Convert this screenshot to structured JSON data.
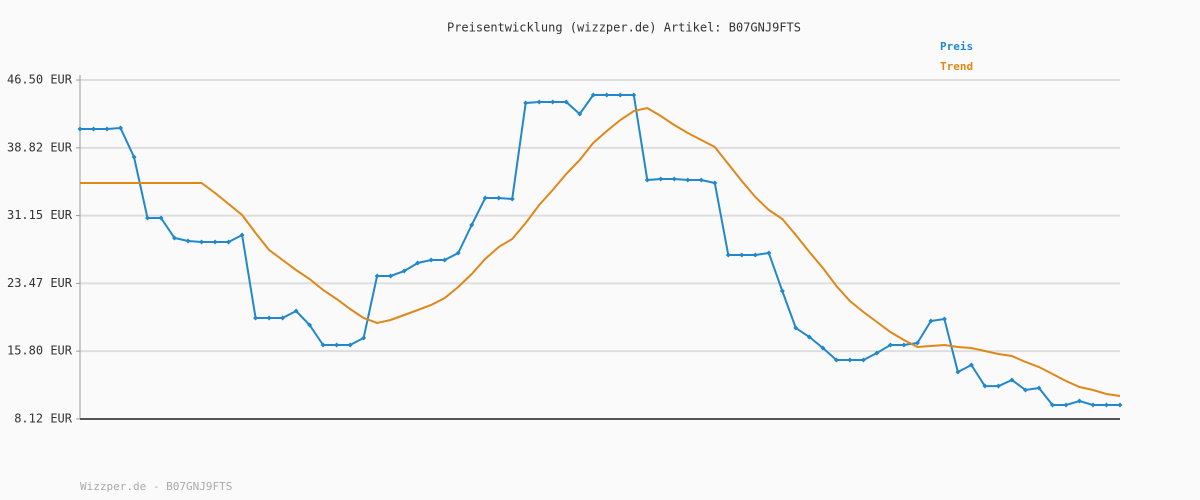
{
  "chart_data": {
    "type": "line",
    "title": "Preisentwicklung (wizzper.de) Artikel: B07GNJ9FTS",
    "footer": "Wizzper.de - B07GNJ9FTS",
    "categories": [
      null,
      null,
      null,
      null,
      null,
      null,
      null,
      null,
      null,
      null,
      null,
      null,
      null,
      null,
      null,
      null,
      null,
      null,
      null,
      null,
      null,
      null,
      null,
      null,
      null,
      null,
      null,
      null,
      null,
      null,
      null,
      null,
      null,
      null,
      null,
      null,
      null,
      null,
      null,
      null,
      null,
      null,
      null,
      null,
      null,
      null,
      null,
      null,
      null,
      null,
      null,
      null,
      null,
      null,
      null,
      null,
      null,
      null,
      null,
      null,
      null,
      null,
      null,
      null,
      null,
      null,
      null,
      null,
      null,
      null,
      null,
      null,
      null,
      null,
      null,
      null,
      null,
      null
    ],
    "series": [
      {
        "name": "Preis",
        "color": "#2288cc",
        "markers": true,
        "values": [
          40.95,
          40.95,
          40.95,
          41.07,
          37.78,
          30.88,
          30.88,
          28.61,
          28.27,
          28.16,
          28.16,
          28.16,
          28.95,
          19.55,
          19.55,
          19.55,
          20.35,
          18.76,
          16.5,
          16.5,
          16.5,
          17.29,
          24.31,
          24.31,
          24.87,
          25.78,
          26.12,
          26.12,
          26.91,
          30.08,
          33.14,
          33.14,
          33.03,
          43.9,
          44.01,
          44.01,
          44.01,
          42.65,
          44.8,
          44.8,
          44.8,
          44.8,
          35.18,
          35.29,
          35.29,
          35.18,
          35.18,
          34.84,
          26.69,
          26.69,
          26.69,
          26.91,
          22.61,
          18.42,
          17.4,
          16.16,
          14.8,
          14.8,
          14.8,
          15.59,
          16.5,
          16.5,
          16.72,
          19.21,
          19.44,
          13.44,
          14.23,
          11.85,
          11.85,
          12.53,
          11.4,
          11.63,
          9.7,
          9.7,
          10.16,
          9.7,
          9.7,
          9.7
        ]
      },
      {
        "name": "Trend",
        "color": "#e0871a",
        "markers": false,
        "values": [
          34.84,
          34.84,
          34.84,
          34.84,
          34.84,
          34.84,
          34.84,
          34.84,
          34.84,
          34.84,
          33.71,
          32.46,
          31.22,
          29.18,
          27.25,
          26.12,
          24.99,
          23.97,
          22.72,
          21.71,
          20.57,
          19.55,
          18.99,
          19.33,
          19.89,
          20.46,
          21.03,
          21.82,
          23.06,
          24.54,
          26.23,
          27.59,
          28.5,
          30.31,
          32.35,
          34.05,
          35.86,
          37.44,
          39.37,
          40.73,
          41.97,
          42.99,
          43.33,
          42.42,
          41.41,
          40.5,
          39.71,
          38.91,
          36.99,
          35.06,
          33.25,
          31.78,
          30.76,
          28.95,
          27.03,
          25.21,
          23.18,
          21.48,
          20.23,
          19.1,
          17.97,
          17.06,
          16.27,
          16.38,
          16.5,
          16.27,
          16.16,
          15.82,
          15.48,
          15.25,
          14.57,
          14.01,
          13.21,
          12.42,
          11.74,
          11.4,
          10.95,
          10.72
        ]
      }
    ],
    "ylim": [
      8.12,
      46.5
    ],
    "yticks": [
      {
        "value": 8.12,
        "label": "8.12 EUR"
      },
      {
        "value": 15.8,
        "label": "15.80 EUR"
      },
      {
        "value": 23.47,
        "label": "23.47 EUR"
      },
      {
        "value": 31.15,
        "label": "31.15 EUR"
      },
      {
        "value": 38.82,
        "label": "38.82 EUR"
      },
      {
        "value": 46.5,
        "label": "46.50 EUR"
      }
    ],
    "grid": true
  }
}
